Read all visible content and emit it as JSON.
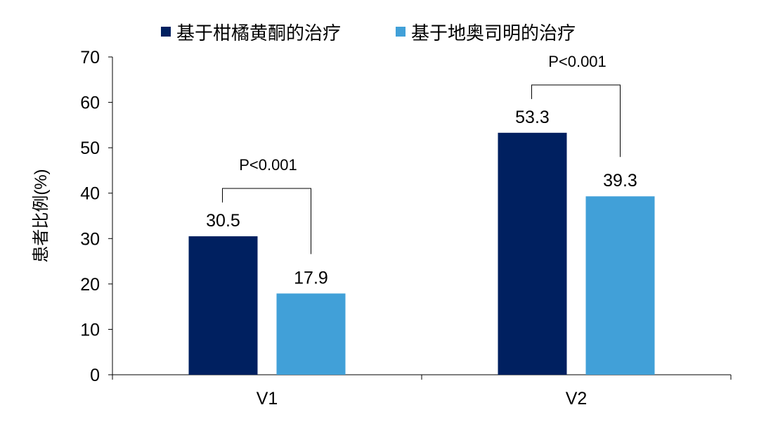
{
  "chart_data": {
    "type": "bar",
    "title": "",
    "xlabel": "",
    "ylabel": "患者比例(%)",
    "ylim": [
      0,
      70
    ],
    "yticks": [
      0,
      10,
      20,
      30,
      40,
      50,
      60,
      70
    ],
    "categories": [
      "V1",
      "V2"
    ],
    "series": [
      {
        "name": "基于柑橘黄酮的治疗",
        "values": [
          30.5,
          53.3
        ],
        "color": "#002060"
      },
      {
        "name": "基于地奥司明的治疗",
        "values": [
          17.9,
          39.3
        ],
        "color": "#41A0D8"
      }
    ],
    "data_labels": [
      "30.5",
      "17.9",
      "53.3",
      "39.3"
    ],
    "annotations": [
      {
        "category": "V1",
        "text": "P<0.001"
      },
      {
        "category": "V2",
        "text": "P<0.001"
      }
    ],
    "legend": "top-center",
    "grid": false
  }
}
